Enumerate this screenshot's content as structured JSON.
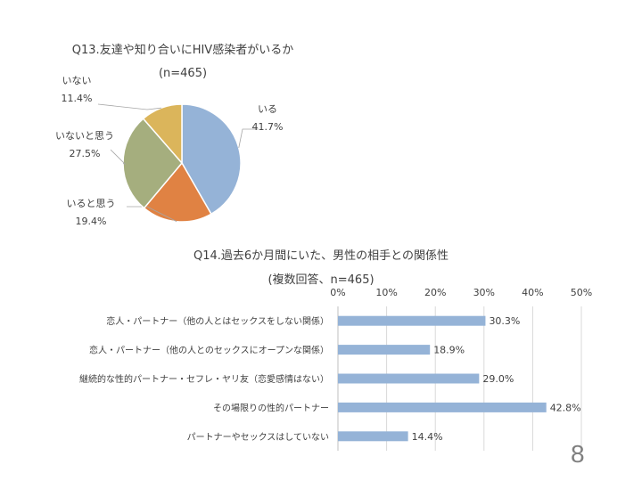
{
  "page_number": "8",
  "chart_data": [
    {
      "type": "pie",
      "title": "Q13.友達や知り合いにHIV感染者がいるか",
      "subtitle": "(n=465)",
      "categories": [
        "いる",
        "いると思う",
        "いないと思う",
        "いない"
      ],
      "values": [
        41.7,
        19.4,
        27.5,
        11.4
      ],
      "labels": [
        "41.7%",
        "19.4%",
        "27.5%",
        "11.4%"
      ],
      "colors": [
        "#95b3d7",
        "#e08243",
        "#a5ae7e",
        "#dbb55b"
      ]
    },
    {
      "type": "bar",
      "orientation": "horizontal",
      "title": "Q14.過去6か月間にいた、男性の相手との関係性",
      "subtitle": "(複数回答、n=465)",
      "categories": [
        "恋人・パートナー（他の人とはセックスをしない関係）",
        "恋人・パートナー（他の人とのセックスにオープンな関係）",
        "継続的な性的パートナー・セフレ・ヤリ友（恋愛感情はない）",
        "その場限りの性的パートナー",
        "パートナーやセックスはしていない"
      ],
      "values": [
        30.3,
        18.9,
        29.0,
        42.8,
        14.4
      ],
      "labels": [
        "30.3%",
        "18.9%",
        "29.0%",
        "42.8%",
        "14.4%"
      ],
      "xlim": [
        0,
        50
      ],
      "ticks": [
        "0%",
        "10%",
        "20%",
        "30%",
        "40%",
        "50%"
      ],
      "grid": true,
      "color": "#95b3d7"
    }
  ]
}
